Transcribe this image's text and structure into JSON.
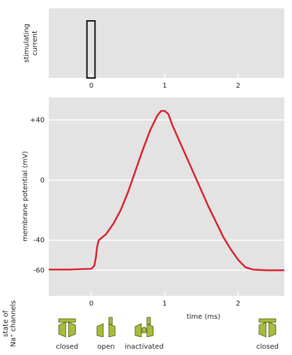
{
  "chart_data": {
    "type": "line",
    "y_label": "membrane potential (mV)",
    "x_label": "time (ms)",
    "stimulus_label_lines": [
      "stimulating",
      "current"
    ],
    "stimulus": {
      "start": -0.06,
      "end": 0.05,
      "color": "#111111"
    },
    "x": [
      -0.58,
      -0.3,
      0.0,
      0.04,
      0.06,
      0.08,
      0.1,
      0.2,
      0.3,
      0.4,
      0.5,
      0.6,
      0.7,
      0.8,
      0.9,
      0.95,
      1.0,
      1.05,
      1.1,
      1.2,
      1.3,
      1.4,
      1.5,
      1.6,
      1.7,
      1.8,
      1.9,
      2.0,
      2.1,
      2.2,
      2.4,
      2.63
    ],
    "series": [
      {
        "color": "#d8202e",
        "values": [
          -59.5,
          -59.5,
          -59,
          -57,
          -52,
          -44,
          -40,
          -36,
          -29,
          -20,
          -8,
          6,
          20,
          33,
          43,
          46,
          46,
          44,
          37,
          26,
          15,
          4,
          -7,
          -18,
          -28,
          -38,
          -46,
          -53,
          -58,
          -59.5,
          -60,
          -60
        ]
      }
    ],
    "xlim": [
      -0.58,
      2.63
    ],
    "ylim": [
      -77,
      55
    ],
    "xticks": [
      0,
      1,
      2
    ],
    "yticks": [
      {
        "value": 40,
        "label": "+40"
      },
      0,
      -40,
      -60
    ],
    "grid": true,
    "channel_label_lines": [
      "state of",
      "Na⁺ channels"
    ],
    "channel_states": [
      {
        "label": "closed",
        "time": -0.33
      },
      {
        "label": "open",
        "time": 0.2
      },
      {
        "label": "inactivated",
        "time": 0.72
      },
      {
        "label": "closed",
        "time": 2.4
      }
    ]
  }
}
